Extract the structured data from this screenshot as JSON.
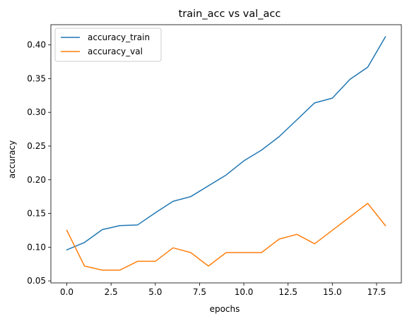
{
  "chart_data": {
    "type": "line",
    "title": "train_acc vs val_acc",
    "xlabel": "epochs",
    "ylabel": "accuracy",
    "xlim": [
      -0.9,
      18.9
    ],
    "ylim": [
      0.047,
      0.43
    ],
    "xticks": [
      0.0,
      2.5,
      5.0,
      7.5,
      10.0,
      12.5,
      15.0,
      17.5
    ],
    "xtick_labels": [
      "0.0",
      "2.5",
      "5.0",
      "7.5",
      "10.0",
      "12.5",
      "15.0",
      "17.5"
    ],
    "yticks": [
      0.05,
      0.1,
      0.15,
      0.2,
      0.25,
      0.3,
      0.35,
      0.4
    ],
    "ytick_labels": [
      "0.05",
      "0.10",
      "0.15",
      "0.20",
      "0.25",
      "0.30",
      "0.35",
      "0.40"
    ],
    "grid": false,
    "legend_position": "top-left",
    "x": [
      0,
      1,
      2,
      3,
      4,
      5,
      6,
      7,
      8,
      9,
      10,
      11,
      12,
      13,
      14,
      15,
      16,
      17,
      18
    ],
    "series": [
      {
        "name": "accuracy_train",
        "color": "#1f77b4",
        "values": [
          0.096,
          0.107,
          0.126,
          0.132,
          0.133,
          0.151,
          0.168,
          0.175,
          0.191,
          0.207,
          0.228,
          0.244,
          0.264,
          0.289,
          0.314,
          0.321,
          0.349,
          0.367,
          0.412
        ]
      },
      {
        "name": "accuracy_val",
        "color": "#ff7f0e",
        "values": [
          0.125,
          0.072,
          0.066,
          0.066,
          0.079,
          0.079,
          0.099,
          0.092,
          0.072,
          0.092,
          0.092,
          0.092,
          0.112,
          0.119,
          0.105,
          0.125,
          0.145,
          0.165,
          0.132
        ]
      }
    ]
  }
}
